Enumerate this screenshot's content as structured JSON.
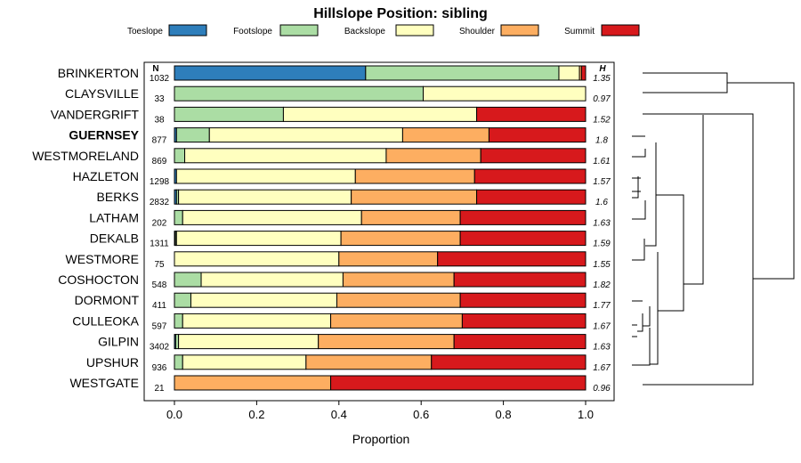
{
  "chart_data": {
    "type": "bar",
    "stacked": true,
    "orientation": "horizontal",
    "title": "Hillslope Position: sibling",
    "xlabel": "Proportion",
    "xlim": [
      0,
      1
    ],
    "xticks": [
      "0.0",
      "0.2",
      "0.4",
      "0.6",
      "0.8",
      "1.0"
    ],
    "legend_position": "top",
    "n_header": "N",
    "h_header": "H",
    "highlighted_row": "GUERNSEY",
    "series": [
      {
        "name": "Toeslope",
        "color": "#2E7EBB"
      },
      {
        "name": "Footslope",
        "color": "#ABDDA4"
      },
      {
        "name": "Backslope",
        "color": "#FFFFBF"
      },
      {
        "name": "Shoulder",
        "color": "#FDAE61"
      },
      {
        "name": "Summit",
        "color": "#D7191C"
      }
    ],
    "rows": [
      {
        "label": "BRINKERTON",
        "n": "1032",
        "h": "1.35",
        "values": [
          0.465,
          0.47,
          0.05,
          0.005,
          0.01
        ]
      },
      {
        "label": "CLAYSVILLE",
        "n": "33",
        "h": "0.97",
        "values": [
          0,
          0.605,
          0.395,
          0,
          0
        ]
      },
      {
        "label": "VANDERGRIFT",
        "n": "38",
        "h": "1.52",
        "values": [
          0,
          0.265,
          0.47,
          0,
          0.265
        ]
      },
      {
        "label": "GUERNSEY",
        "n": "877",
        "h": "1.8",
        "values": [
          0.005,
          0.08,
          0.47,
          0.21,
          0.235
        ]
      },
      {
        "label": "WESTMORELAND",
        "n": "869",
        "h": "1.61",
        "values": [
          0,
          0.025,
          0.49,
          0.23,
          0.255
        ]
      },
      {
        "label": "HAZLETON",
        "n": "1298",
        "h": "1.57",
        "values": [
          0.005,
          0,
          0.435,
          0.29,
          0.27
        ]
      },
      {
        "label": "BERKS",
        "n": "2832",
        "h": "1.6",
        "values": [
          0.005,
          0.005,
          0.42,
          0.305,
          0.265
        ]
      },
      {
        "label": "LATHAM",
        "n": "202",
        "h": "1.63",
        "values": [
          0,
          0.02,
          0.435,
          0.24,
          0.305
        ]
      },
      {
        "label": "DEKALB",
        "n": "1311",
        "h": "1.59",
        "values": [
          0.002,
          0.003,
          0.4,
          0.29,
          0.305
        ]
      },
      {
        "label": "WESTMORE",
        "n": "75",
        "h": "1.55",
        "values": [
          0,
          0,
          0.4,
          0.24,
          0.36
        ]
      },
      {
        "label": "COSHOCTON",
        "n": "548",
        "h": "1.82",
        "values": [
          0,
          0.065,
          0.345,
          0.27,
          0.32
        ]
      },
      {
        "label": "DORMONT",
        "n": "411",
        "h": "1.77",
        "values": [
          0,
          0.04,
          0.355,
          0.3,
          0.305
        ]
      },
      {
        "label": "CULLEOKA",
        "n": "597",
        "h": "1.67",
        "values": [
          0,
          0.02,
          0.36,
          0.32,
          0.3
        ]
      },
      {
        "label": "GILPIN",
        "n": "3402",
        "h": "1.63",
        "values": [
          0.003,
          0.007,
          0.34,
          0.33,
          0.32
        ]
      },
      {
        "label": "UPSHUR",
        "n": "936",
        "h": "1.67",
        "values": [
          0,
          0.02,
          0.3,
          0.305,
          0.375
        ]
      },
      {
        "label": "WESTGATE",
        "n": "21",
        "h": "0.96",
        "values": [
          0,
          0,
          0,
          0.38,
          0.62
        ]
      }
    ]
  }
}
